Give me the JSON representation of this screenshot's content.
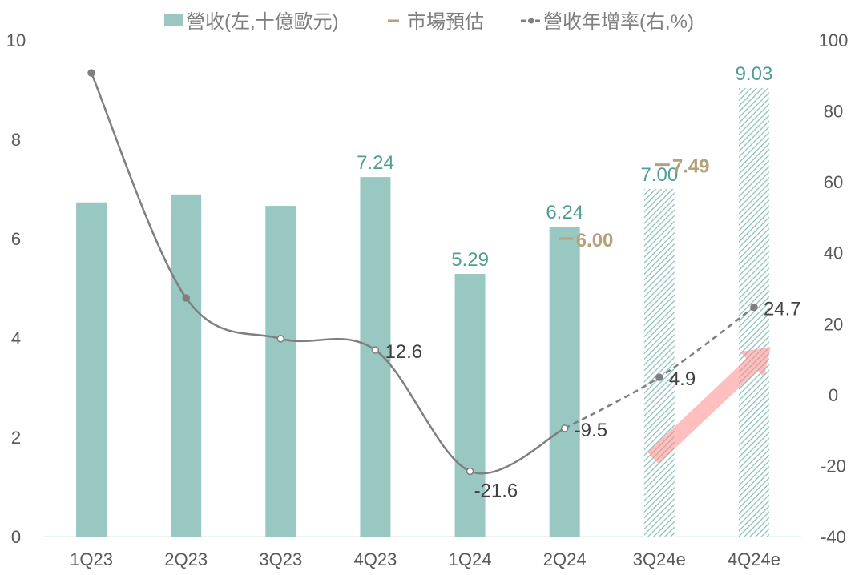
{
  "chart_data": {
    "type": "bar",
    "categories": [
      "1Q23",
      "2Q23",
      "3Q23",
      "4Q23",
      "1Q24",
      "2Q24",
      "3Q24e",
      "4Q24e"
    ],
    "series": [
      {
        "name": "營收(左,十億歐元)",
        "type": "bar",
        "axis": "left",
        "values": [
          6.73,
          6.89,
          6.66,
          7.24,
          5.29,
          6.24,
          7.0,
          9.03
        ],
        "labels": [
          null,
          null,
          null,
          "7.24",
          "5.29",
          "6.24",
          "7.00",
          "9.03"
        ],
        "estimate_from_index": 6,
        "color": "#99c7c2",
        "label_color": "#4e9e95"
      },
      {
        "name": "市場預估",
        "type": "marker",
        "axis": "left",
        "values": [
          null,
          null,
          null,
          null,
          null,
          6.0,
          7.49,
          null
        ],
        "labels": [
          null,
          null,
          null,
          null,
          null,
          "6.00",
          "7.49",
          null
        ],
        "color": "#b5a07a"
      },
      {
        "name": "營收年增率(右,%)",
        "type": "line",
        "axis": "right",
        "values": [
          90.7,
          27.3,
          15.8,
          12.6,
          -21.6,
          -9.5,
          4.9,
          24.7
        ],
        "labels": [
          null,
          null,
          null,
          "12.6",
          "-21.6",
          "-9.5",
          "4.9",
          "24.7"
        ],
        "dashed_from_index": 5,
        "color": "#7f7f7f"
      }
    ],
    "left_axis": {
      "ylim": [
        0,
        10
      ],
      "ticks": [
        "0",
        "2",
        "4",
        "6",
        "8",
        "10"
      ]
    },
    "right_axis": {
      "ylim": [
        -40,
        100
      ],
      "ticks": [
        "-40",
        "-20",
        "0",
        "20",
        "40",
        "60",
        "80",
        "100"
      ]
    },
    "legend": {
      "placement": "top",
      "items": [
        "營收(左,十億歐元)",
        "市場預估",
        "營收年增率(右,%)"
      ]
    },
    "annotation": "upward-trend-arrow",
    "grid": false
  }
}
